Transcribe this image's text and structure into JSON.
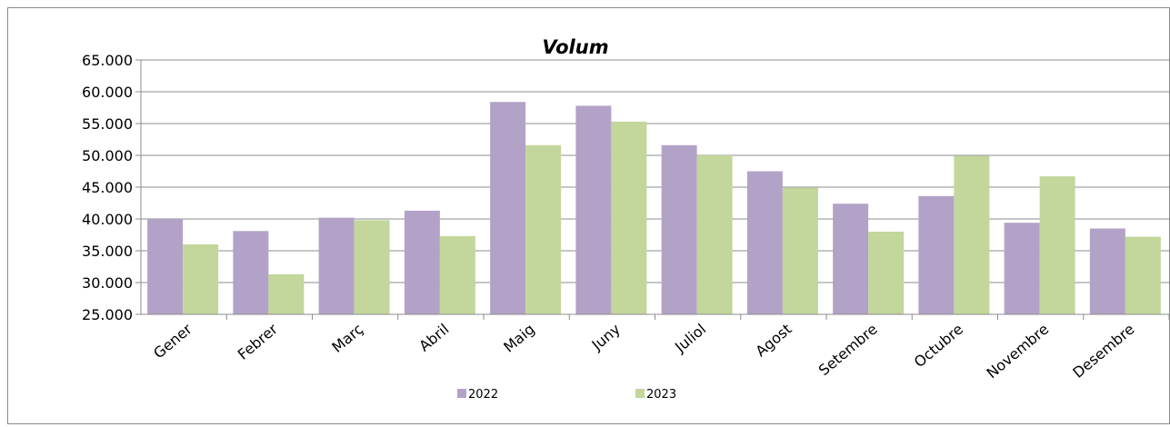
{
  "chart_data": {
    "type": "bar",
    "title": "Volum",
    "xlabel": "",
    "ylabel": "",
    "categories": [
      "Gener",
      "Febrer",
      "Març",
      "Abril",
      "Maig",
      "Juny",
      "Juliol",
      "Agost",
      "Setembre",
      "Octubre",
      "Novembre",
      "Desembre"
    ],
    "series": [
      {
        "name": "2022",
        "color": "#b3a2c7",
        "values": [
          40000,
          38100,
          40200,
          41300,
          58400,
          57800,
          51600,
          47500,
          42400,
          43600,
          39400,
          38500
        ]
      },
      {
        "name": "2023",
        "color": "#c3d69b",
        "values": [
          36000,
          31300,
          39800,
          37300,
          51600,
          55300,
          50000,
          44900,
          38000,
          49900,
          46700,
          37200
        ]
      }
    ],
    "ylim": [
      25000,
      65000
    ],
    "ytick_values": [
      25000,
      30000,
      35000,
      40000,
      45000,
      50000,
      55000,
      60000,
      65000
    ],
    "ytick_labels": [
      "25.000",
      "30.000",
      "35.000",
      "40.000",
      "45.000",
      "50.000",
      "55.000",
      "60.000",
      "65.000"
    ],
    "grid": true,
    "legend_position": "bottom"
  }
}
